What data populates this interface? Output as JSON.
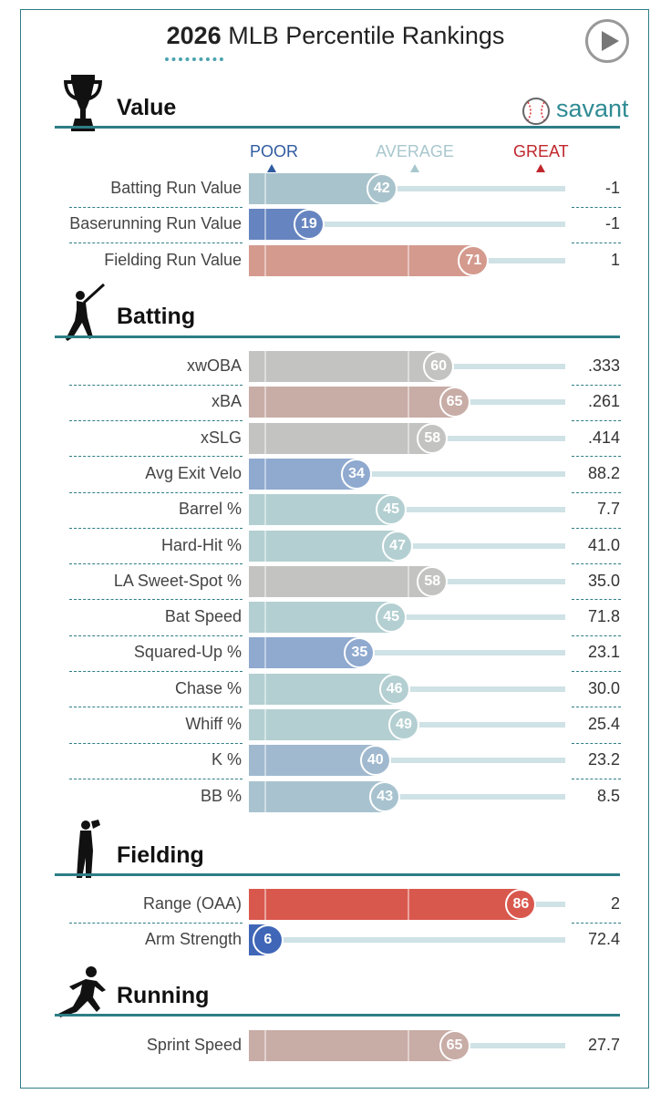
{
  "title": {
    "year": "2026",
    "rest": "MLB Percentile Rankings"
  },
  "logo": {
    "text": "savant"
  },
  "legend": {
    "poor": "POOR",
    "average": "AVERAGE",
    "great": "GREAT"
  },
  "colors": {
    "accent": "#2e7d86",
    "poor": "#2f5b9f",
    "average": "#b8cfd4",
    "great": "#c0272d"
  },
  "chart_data": {
    "type": "bar",
    "title": "2026 MLB Percentile Rankings",
    "xlim": [
      0,
      100
    ],
    "sections": [
      {
        "name": "Value",
        "icon": "trophy-icon",
        "rows": [
          {
            "label": "Batting Run Value",
            "percentile": 42,
            "value": "-1",
            "color": "#a9c3cc"
          },
          {
            "label": "Baserunning Run Value",
            "percentile": 19,
            "value": "-1",
            "color": "#6685c0"
          },
          {
            "label": "Fielding Run Value",
            "percentile": 71,
            "value": "1",
            "color": "#d49a8e"
          }
        ]
      },
      {
        "name": "Batting",
        "icon": "batter-icon",
        "rows": [
          {
            "label": "xwOBA",
            "percentile": 60,
            "value": ".333",
            "color": "#c3c3c1"
          },
          {
            "label": "xBA",
            "percentile": 65,
            "value": ".261",
            "color": "#c8aca6"
          },
          {
            "label": "xSLG",
            "percentile": 58,
            "value": ".414",
            "color": "#c3c3c1"
          },
          {
            "label": "Avg Exit Velo",
            "percentile": 34,
            "value": "88.2",
            "color": "#8fa9cf"
          },
          {
            "label": "Barrel %",
            "percentile": 45,
            "value": "7.7",
            "color": "#b3cfd1"
          },
          {
            "label": "Hard-Hit %",
            "percentile": 47,
            "value": "41.0",
            "color": "#b3cfd1"
          },
          {
            "label": "LA Sweet-Spot %",
            "percentile": 58,
            "value": "35.0",
            "color": "#c3c3c1"
          },
          {
            "label": "Bat Speed",
            "percentile": 45,
            "value": "71.8",
            "color": "#b3cfd1"
          },
          {
            "label": "Squared-Up %",
            "percentile": 35,
            "value": "23.1",
            "color": "#8fa9cf"
          },
          {
            "label": "Chase %",
            "percentile": 46,
            "value": "30.0",
            "color": "#b3cfd1"
          },
          {
            "label": "Whiff %",
            "percentile": 49,
            "value": "25.4",
            "color": "#b3cfd1"
          },
          {
            "label": "K %",
            "percentile": 40,
            "value": "23.2",
            "color": "#a0b9cf"
          },
          {
            "label": "BB %",
            "percentile": 43,
            "value": "8.5",
            "color": "#a8c3cf"
          }
        ]
      },
      {
        "name": "Fielding",
        "icon": "fielder-icon",
        "rows": [
          {
            "label": "Range (OAA)",
            "percentile": 86,
            "value": "2",
            "color": "#d9584e"
          },
          {
            "label": "Arm Strength",
            "percentile": 6,
            "value": "72.4",
            "color": "#3f66b7"
          }
        ]
      },
      {
        "name": "Running",
        "icon": "runner-icon",
        "rows": [
          {
            "label": "Sprint Speed",
            "percentile": 65,
            "value": "27.7",
            "color": "#c8aca6"
          }
        ]
      }
    ]
  }
}
